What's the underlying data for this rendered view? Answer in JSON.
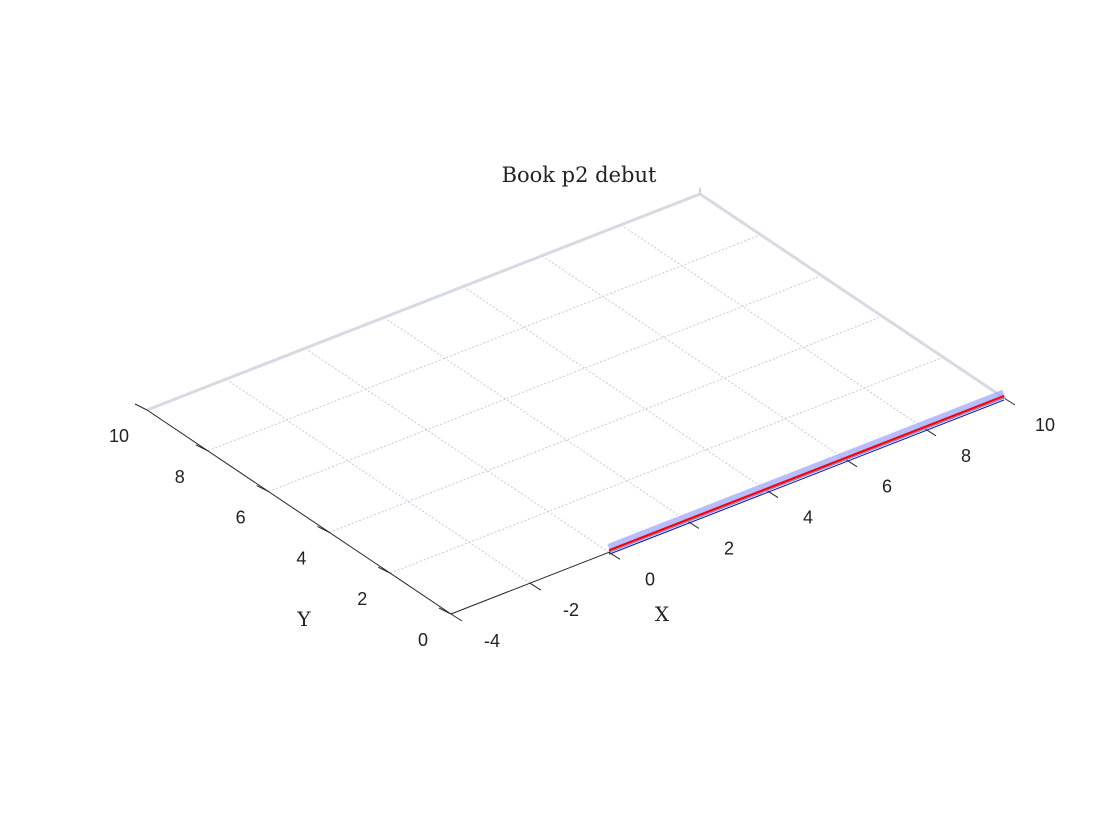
{
  "chart_data": {
    "type": "line",
    "view": "3d",
    "title": "Book p2 debut",
    "xlabel": "X",
    "ylabel": "Y",
    "xlim": [
      -4,
      10
    ],
    "ylim": [
      0,
      10
    ],
    "xticks": [
      "-4",
      "-2",
      "0",
      "2",
      "4",
      "6",
      "8",
      "10"
    ],
    "yticks": [
      "0",
      "2",
      "4",
      "6",
      "8",
      "10"
    ],
    "grid": true,
    "series": [
      {
        "x": [
          0,
          10
        ],
        "y": [
          0,
          0
        ],
        "color": "#9fa8ff",
        "style": "wide-band"
      },
      {
        "x": [
          0,
          10
        ],
        "y": [
          0,
          0
        ],
        "color": "#ff0000",
        "style": "line"
      },
      {
        "x": [
          0,
          10
        ],
        "y": [
          0,
          0
        ],
        "color": "#1a1aa8",
        "style": "thin-line"
      }
    ]
  }
}
